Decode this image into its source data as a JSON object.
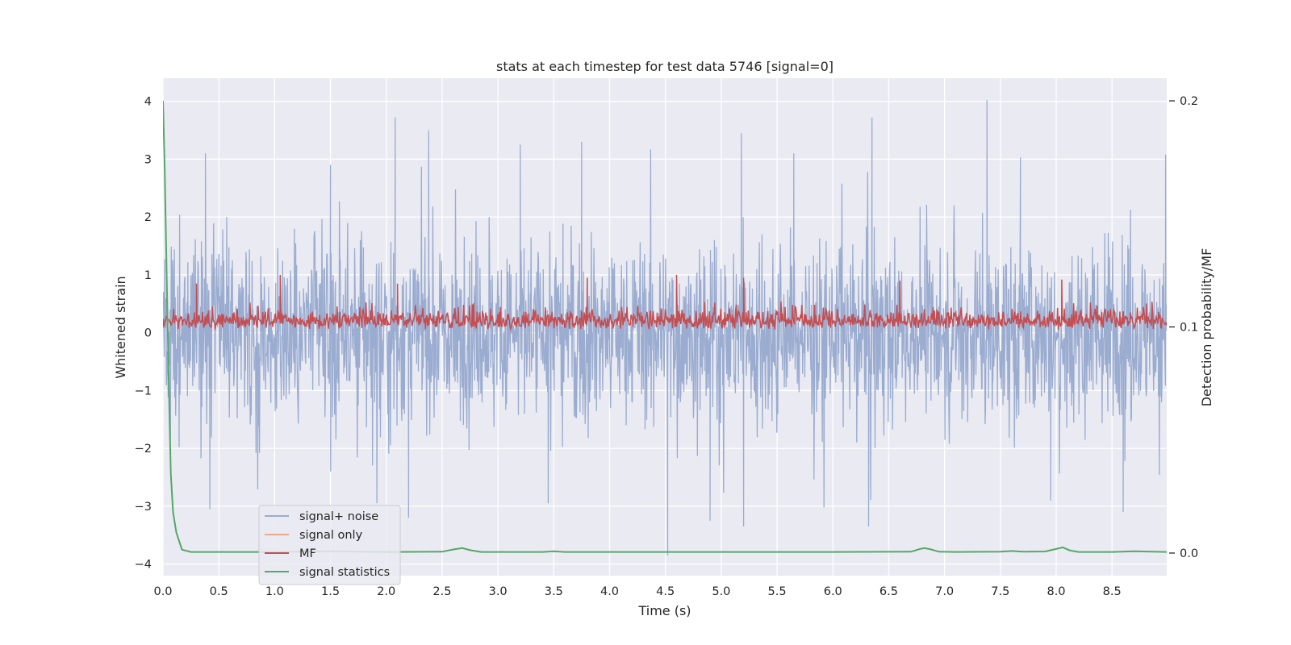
{
  "chart_data": {
    "type": "line",
    "title": "stats at each timestep for test data 5746 [signal=0]",
    "xlabel": "Time (s)",
    "ylabel": "Whitened strain",
    "ylabel_right": "Detection probability/MF",
    "xlim": [
      0,
      8.99
    ],
    "ylim": [
      -4.2,
      4.4
    ],
    "ylim_right": [
      -0.01,
      0.21
    ],
    "x_ticks": [
      "0.0",
      "0.5",
      "1.0",
      "1.5",
      "2.0",
      "2.5",
      "3.0",
      "3.5",
      "4.0",
      "4.5",
      "5.0",
      "5.5",
      "6.0",
      "6.5",
      "7.0",
      "7.5",
      "8.0",
      "8.5"
    ],
    "y_ticks": [
      "4",
      "3",
      "2",
      "1",
      "0",
      "−1",
      "−2",
      "−3",
      "−4"
    ],
    "y_ticks_right": [
      "0.2",
      "0.1",
      "0.0"
    ],
    "grid": true,
    "legend_position": "lower-left",
    "noise": {
      "sample_count": 2300,
      "envelope_top": 2.2,
      "envelope_bottom": -2.2,
      "max": 4.02,
      "min": -3.85,
      "notable_peaks": [
        {
          "x": 2.08,
          "y": 3.72
        },
        {
          "x": 2.38,
          "y": 3.5
        },
        {
          "x": 3.2,
          "y": 3.25
        },
        {
          "x": 3.75,
          "y": 3.3
        },
        {
          "x": 5.18,
          "y": 3.45
        },
        {
          "x": 6.35,
          "y": 3.72
        },
        {
          "x": 7.38,
          "y": 4.02
        },
        {
          "x": 7.68,
          "y": 3.03
        },
        {
          "x": 8.98,
          "y": 3.08
        },
        {
          "x": 0.38,
          "y": 3.1
        },
        {
          "x": 1.5,
          "y": 2.9
        },
        {
          "x": 5.65,
          "y": 3.1
        }
      ],
      "notable_troughs": [
        {
          "x": 4.52,
          "y": -3.85
        },
        {
          "x": 6.32,
          "y": -3.35
        },
        {
          "x": 5.2,
          "y": -3.35
        },
        {
          "x": 4.9,
          "y": -3.25
        },
        {
          "x": 2.2,
          "y": -3.2
        },
        {
          "x": 0.42,
          "y": -3.05
        },
        {
          "x": 8.6,
          "y": -3.1
        },
        {
          "x": 3.45,
          "y": -2.95
        },
        {
          "x": 7.95,
          "y": -2.9
        }
      ]
    },
    "mf": {
      "baseline": 0.05,
      "typical_high": 0.55,
      "max": 1.0,
      "peaks": [
        {
          "x": 1.05,
          "y": 1.0
        },
        {
          "x": 3.8,
          "y": 0.95
        },
        {
          "x": 4.6,
          "y": 1.0
        },
        {
          "x": 5.2,
          "y": 0.95
        },
        {
          "x": 6.6,
          "y": 0.9
        },
        {
          "x": 8.05,
          "y": 0.92
        },
        {
          "x": 2.1,
          "y": 0.85
        },
        {
          "x": 0.3,
          "y": 0.85
        }
      ]
    },
    "series": [
      {
        "name": "signal+ noise",
        "color": "#9aacd0",
        "axis": "left"
      },
      {
        "name": "signal only",
        "color": "#eda88a",
        "axis": "left"
      },
      {
        "name": "MF",
        "color": "#c44e52",
        "axis": "left"
      },
      {
        "name": "signal statistics",
        "color": "#55a868",
        "axis": "right",
        "x": [
          0.0,
          0.015,
          0.03,
          0.05,
          0.07,
          0.09,
          0.12,
          0.17,
          0.25,
          0.5,
          1.0,
          1.5,
          2.0,
          2.5,
          2.6,
          2.68,
          2.76,
          2.85,
          3.0,
          3.4,
          3.5,
          3.6,
          4.0,
          5.0,
          6.0,
          6.7,
          6.78,
          6.82,
          6.88,
          6.95,
          7.1,
          7.5,
          7.6,
          7.7,
          7.9,
          7.98,
          8.06,
          8.12,
          8.2,
          8.5,
          8.7,
          8.99
        ],
        "y": [
          0.2,
          0.17,
          0.13,
          0.08,
          0.035,
          0.018,
          0.009,
          0.0015,
          0.0005,
          0.0005,
          0.0005,
          0.0008,
          0.0005,
          0.0006,
          0.0016,
          0.0022,
          0.0012,
          0.0005,
          0.0005,
          0.0005,
          0.0008,
          0.0005,
          0.0005,
          0.0005,
          0.0005,
          0.0006,
          0.0018,
          0.0022,
          0.0016,
          0.0006,
          0.0005,
          0.0006,
          0.0009,
          0.0006,
          0.0007,
          0.0016,
          0.0025,
          0.0012,
          0.0005,
          0.0005,
          0.0008,
          0.0005
        ]
      }
    ]
  }
}
